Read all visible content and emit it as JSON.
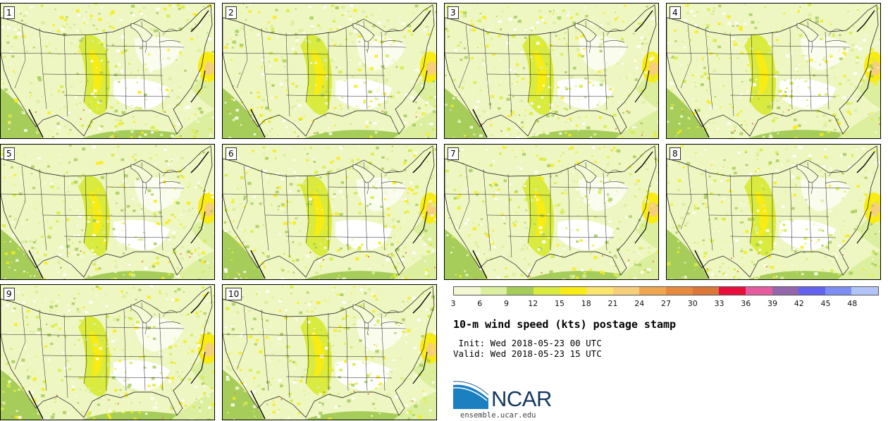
{
  "panels": [
    {
      "label": "1"
    },
    {
      "label": "2"
    },
    {
      "label": "3"
    },
    {
      "label": "4"
    },
    {
      "label": "5"
    },
    {
      "label": "6"
    },
    {
      "label": "7"
    },
    {
      "label": "8"
    },
    {
      "label": "9"
    },
    {
      "label": "10"
    }
  ],
  "legend": {
    "ticks": [
      "3",
      "6",
      "9",
      "12",
      "15",
      "18",
      "21",
      "24",
      "27",
      "30",
      "33",
      "36",
      "39",
      "42",
      "45",
      "48"
    ],
    "colors": [
      "#f3f8d3",
      "#dbef9e",
      "#a6cd5a",
      "#d8eb3e",
      "#f8ec12",
      "#fbe56e",
      "#f7cf7c",
      "#eea650",
      "#e68a3f",
      "#db7739",
      "#e60f3c",
      "#e55ba0",
      "#9466ab",
      "#6363ee",
      "#7e8df2",
      "#b2c4f7"
    ]
  },
  "title": "10-m wind speed (kts) postage stamp",
  "init_text": " Init: Wed 2018-05-23 00 UTC",
  "valid_text": "Valid: Wed 2018-05-23 15 UTC",
  "logo_text": "NCAR",
  "url": "ensemble.ucar.edu"
}
